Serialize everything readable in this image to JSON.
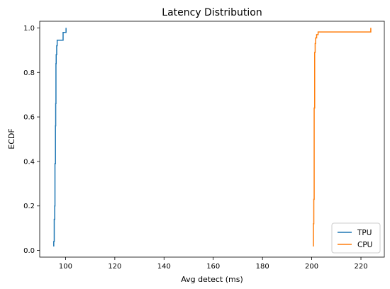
{
  "chart_data": {
    "type": "line",
    "title": "Latency Distribution",
    "xlabel": "Avg detect (ms)",
    "ylabel": "ECDF",
    "xlim": [
      89.5,
      229.5
    ],
    "ylim": [
      -0.03,
      1.03
    ],
    "xticks": [
      100,
      120,
      140,
      160,
      180,
      200,
      220
    ],
    "yticks": [
      0.0,
      0.2,
      0.4,
      0.6,
      0.8,
      1.0
    ],
    "legend": "lower-right",
    "series": [
      {
        "name": "TPU",
        "color": "#1f77b4",
        "x": [
          95.0,
          95.2,
          95.4,
          95.6,
          95.7,
          95.9,
          96.0,
          96.1,
          96.2,
          96.4,
          96.6,
          97.0,
          99.0,
          99.5,
          100.2
        ],
        "y": [
          0.02,
          0.04,
          0.14,
          0.2,
          0.39,
          0.56,
          0.66,
          0.84,
          0.88,
          0.92,
          0.945,
          0.945,
          0.98,
          0.98,
          1.0
        ]
      },
      {
        "name": "CPU",
        "color": "#ff7f0e",
        "x": [
          200.5,
          200.7,
          200.85,
          201.0,
          201.2,
          201.4,
          201.6,
          202.0,
          202.6,
          223.5,
          224.0
        ],
        "y": [
          0.02,
          0.12,
          0.23,
          0.64,
          0.89,
          0.93,
          0.955,
          0.97,
          0.982,
          0.982,
          1.0
        ]
      }
    ]
  }
}
